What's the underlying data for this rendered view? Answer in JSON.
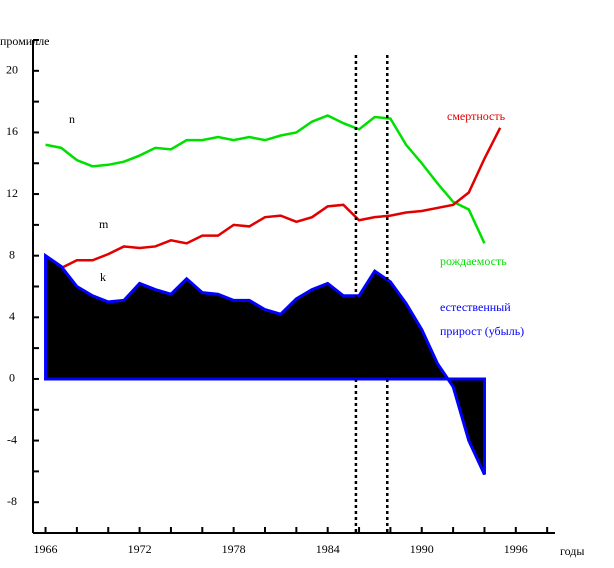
{
  "chart_data": {
    "type": "line",
    "y_label": "промилле",
    "x_label": "годы",
    "annotations": [
      "n",
      "m",
      "k"
    ],
    "x": [
      1966,
      1967,
      1968,
      1969,
      1970,
      1971,
      1972,
      1973,
      1974,
      1975,
      1976,
      1977,
      1978,
      1979,
      1980,
      1981,
      1982,
      1983,
      1984,
      1985,
      1986,
      1987,
      1988,
      1989,
      1990,
      1991,
      1992,
      1993,
      1994,
      1995
    ],
    "series": [
      {
        "name": "рождаемость",
        "color": "#00e000",
        "values": [
          15.2,
          15.0,
          14.2,
          13.8,
          13.9,
          14.1,
          14.5,
          15.0,
          14.9,
          15.5,
          15.5,
          15.7,
          15.5,
          15.7,
          15.5,
          15.8,
          16.0,
          16.7,
          17.1,
          16.6,
          16.2,
          17.0,
          16.9,
          15.2,
          14.0,
          12.7,
          11.5,
          11.0,
          8.8,
          null
        ]
      },
      {
        "name": "смертность",
        "color": "#e00000",
        "values": [
          7.0,
          7.2,
          7.7,
          7.7,
          8.1,
          8.6,
          8.5,
          8.6,
          9.0,
          8.8,
          9.3,
          9.3,
          10.0,
          9.9,
          10.5,
          10.6,
          10.2,
          10.5,
          11.2,
          11.3,
          10.3,
          10.5,
          10.6,
          10.8,
          10.9,
          11.1,
          11.3,
          12.1,
          14.3,
          16.3
        ]
      },
      {
        "name": "естественный прирост (убыль)",
        "color": "#0000ff",
        "fill": "#000000",
        "values": [
          8.0,
          7.3,
          6.0,
          5.4,
          5.0,
          5.1,
          6.2,
          5.8,
          5.5,
          6.5,
          5.6,
          5.5,
          5.1,
          5.1,
          4.5,
          4.2,
          5.2,
          5.8,
          6.2,
          5.4,
          5.4,
          7.0,
          6.3,
          4.9,
          3.2,
          1.0,
          -0.5,
          -4.0,
          -6.2,
          null
        ]
      }
    ],
    "xlim": [
      1965.2,
      1998.5
    ],
    "ylim": [
      -10,
      22
    ],
    "xticks": [
      1966,
      1972,
      1978,
      1984,
      1990,
      1996
    ],
    "xminorticks": [
      1968,
      1970,
      1974,
      1976,
      1980,
      1982,
      1986,
      1988,
      1992,
      1994,
      1998
    ],
    "yticks": [
      -8,
      -4,
      0,
      4,
      8,
      12,
      16,
      20
    ],
    "yminorticks": [
      -10,
      -6,
      -2,
      2,
      6,
      10,
      14,
      18,
      22
    ],
    "vlines": [
      1985.8,
      1987.8
    ]
  }
}
